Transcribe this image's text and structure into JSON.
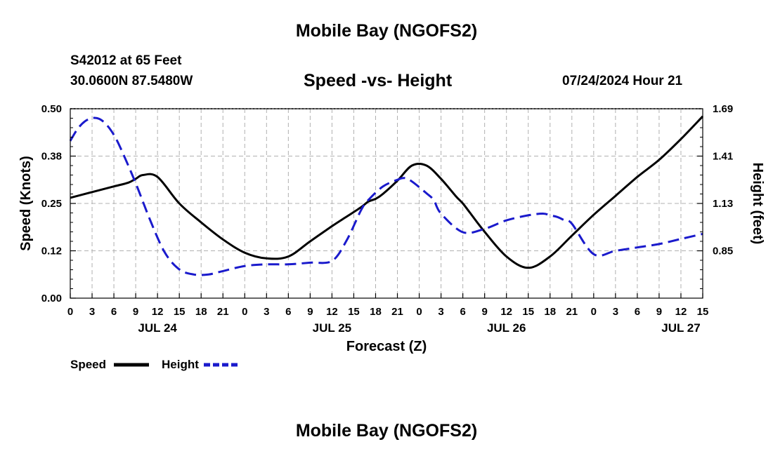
{
  "header": {
    "title_top": "Mobile Bay (NGOFS2)",
    "station": "S42012 at 65 Feet",
    "coords": "30.0600N  87.5480W",
    "subtitle": "Speed -vs- Height",
    "datetime": "07/24/2024 Hour 21",
    "title_bottom": "Mobile Bay (NGOFS2)"
  },
  "colors": {
    "speed": "#000000",
    "height": "#1a1acc",
    "grid": "#b0b0b0"
  },
  "chart_data": {
    "type": "line",
    "title": "Speed -vs- Height",
    "xlabel": "Forecast (Z)",
    "ylabel": "Speed (Knots)",
    "y2label": "Height (feet)",
    "x_unit": "hours since JUL 24 00Z",
    "xlim": [
      -9,
      78
    ],
    "ylim": [
      0,
      0.5
    ],
    "y2lim": [
      0.57,
      1.69
    ],
    "x_ticks": [
      -9,
      -6,
      -3,
      0,
      3,
      6,
      9,
      12,
      15,
      18,
      21,
      24,
      27,
      30,
      33,
      36,
      39,
      42,
      45,
      48,
      51,
      54,
      57,
      60,
      63,
      66,
      69,
      72,
      75,
      78
    ],
    "x_tick_labels": [
      "0",
      "3",
      "6",
      "9",
      "12",
      "15",
      "18",
      "21",
      "0",
      "3",
      "6",
      "9",
      "12",
      "15",
      "18",
      "21",
      "0",
      "3",
      "6",
      "9",
      "12",
      "15",
      "18",
      "21",
      "0",
      "3",
      "6",
      "9",
      "12",
      "15"
    ],
    "date_labels": [
      {
        "x": 3,
        "label": "JUL 24"
      },
      {
        "x": 27,
        "label": "JUL 25"
      },
      {
        "x": 51,
        "label": "JUL 26"
      },
      {
        "x": 75,
        "label": "JUL 27"
      }
    ],
    "y_ticks": [
      0,
      0.125,
      0.25,
      0.375,
      0.5
    ],
    "y_tick_labels": [
      "0.00",
      "0.12",
      "0.25",
      "0.38",
      "0.50"
    ],
    "y2_ticks": [
      0.85,
      1.13,
      1.41,
      1.69
    ],
    "y2_tick_labels": [
      "0.85",
      "1.13",
      "1.41",
      "1.69"
    ],
    "grid": true,
    "series": [
      {
        "name": "Speed",
        "axis": "left",
        "style": "solid",
        "x": [
          -9,
          -6,
          -3,
          -1,
          0,
          1,
          3,
          6,
          9,
          12,
          15,
          18,
          21,
          24,
          27,
          29,
          31,
          32,
          33,
          34,
          36,
          38,
          40,
          42,
          44,
          45,
          46,
          48,
          51,
          54,
          57,
          60,
          63,
          66,
          69,
          72,
          75,
          78
        ],
        "values": [
          0.265,
          0.28,
          0.295,
          0.305,
          0.315,
          0.325,
          0.32,
          0.25,
          0.2,
          0.155,
          0.12,
          0.105,
          0.11,
          0.15,
          0.19,
          0.215,
          0.24,
          0.255,
          0.262,
          0.275,
          0.31,
          0.35,
          0.35,
          0.315,
          0.27,
          0.25,
          0.225,
          0.175,
          0.11,
          0.08,
          0.11,
          0.165,
          0.22,
          0.27,
          0.32,
          0.365,
          0.42,
          0.48
        ]
      },
      {
        "name": "Height",
        "axis": "right",
        "style": "dashed",
        "x": [
          -9,
          -8,
          -7,
          -6,
          -5,
          -4,
          -3,
          -2,
          0,
          2,
          4,
          6,
          8,
          10,
          12,
          15,
          18,
          21,
          24,
          27,
          29,
          31,
          32,
          34,
          36,
          37,
          38,
          40,
          41,
          42,
          45,
          48,
          51,
          54,
          56,
          57,
          58,
          59,
          60,
          63,
          66,
          69,
          72,
          75,
          78
        ],
        "values": [
          1.5,
          1.57,
          1.615,
          1.635,
          1.63,
          1.595,
          1.535,
          1.45,
          1.25,
          1.03,
          0.84,
          0.74,
          0.71,
          0.71,
          0.73,
          0.76,
          0.77,
          0.77,
          0.78,
          0.79,
          0.91,
          1.09,
          1.15,
          1.23,
          1.27,
          1.28,
          1.26,
          1.19,
          1.15,
          1.07,
          0.96,
          0.98,
          1.03,
          1.06,
          1.07,
          1.06,
          1.05,
          1.03,
          1.01,
          0.83,
          0.85,
          0.87,
          0.89,
          0.92,
          0.95
        ]
      }
    ],
    "legend": {
      "placement": "bottom-left",
      "items": [
        "Speed",
        "Height"
      ]
    }
  }
}
